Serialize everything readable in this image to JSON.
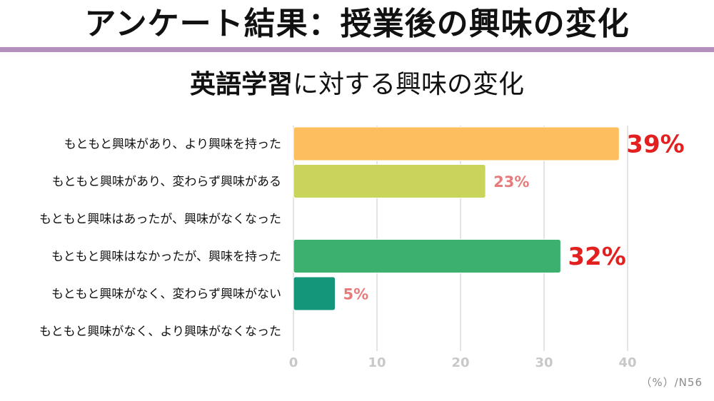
{
  "slide": {
    "title": "アンケート結果：授業後の興味の変化",
    "rule_color": "#b48fbe"
  },
  "chart_title": {
    "emphasis": "英語学習",
    "rest": "に対する興味の変化"
  },
  "footnote": "（%）/N56",
  "chart_data": {
    "type": "bar",
    "orientation": "horizontal",
    "title": "英語学習に対する興味の変化",
    "categories": [
      "もともと興味があり、より興味を持った",
      "もともと興味があり、変わらず興味がある",
      "もともと興味はあったが、興味がなくなった",
      "もともと興味はなかったが、興味を持った",
      "もともと興味がなく、変わらず興味がない",
      "もともと興味がなく、より興味がなくなった"
    ],
    "values": [
      39,
      23,
      0,
      32,
      5,
      0
    ],
    "labels": [
      "39%",
      "23%",
      "",
      "32%",
      "5%",
      ""
    ],
    "label_styles": [
      "big",
      "small",
      "",
      "big",
      "small",
      ""
    ],
    "label_colors": [
      "#e32020",
      "#e77b7b",
      "",
      "#e32020",
      "#e77b7b",
      ""
    ],
    "bar_colors": [
      "#fdbf5e",
      "#c8d45a",
      "#c8d45a",
      "#3cb06d",
      "#13967a",
      "#13967a"
    ],
    "xlim": [
      0,
      40
    ],
    "xticks": [
      "0",
      "10",
      "20",
      "30",
      "40"
    ],
    "grid": true,
    "legend": "none"
  }
}
